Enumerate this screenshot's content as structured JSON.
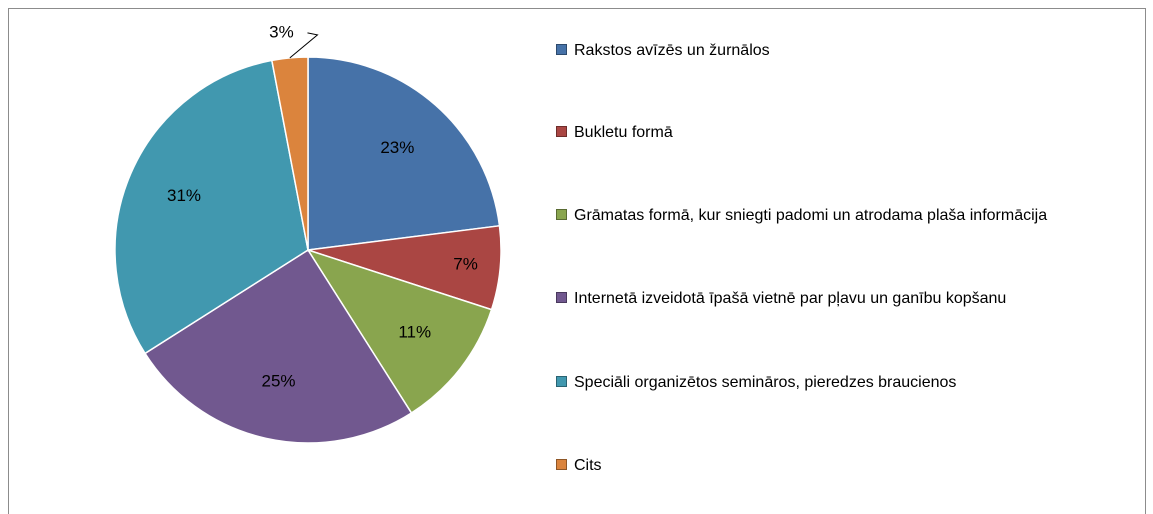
{
  "chart_data": {
    "type": "pie",
    "categories": [
      "Rakstos avīzēs un žurnālos",
      "Bukletu formā",
      "Grāmatas formā, kur sniegti padomi un atrodama plaša informācija",
      "Internetā izveidotā īpašā vietnē par pļavu un ganību kopšanu",
      "Speciāli organizētos semināros, pieredzes braucienos",
      "Cits"
    ],
    "values": [
      23,
      7,
      11,
      25,
      31,
      3
    ],
    "value_labels": [
      "23%",
      "7%",
      "11%",
      "25%",
      "31%",
      "3%"
    ],
    "colors": [
      "#4672a8",
      "#aa4643",
      "#89a54e",
      "#71588f",
      "#4198af",
      "#db843d"
    ],
    "legend": "right"
  }
}
